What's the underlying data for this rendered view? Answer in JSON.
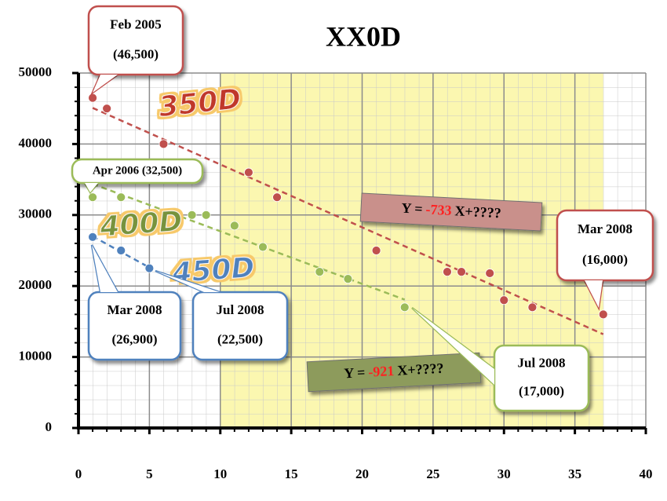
{
  "chart_data": {
    "type": "scatter",
    "title": "XX0D",
    "xlim": [
      0,
      40
    ],
    "xticks": [
      0,
      5,
      10,
      15,
      20,
      25,
      30,
      35,
      40
    ],
    "ylim": [
      0,
      50000
    ],
    "yticks": [
      0,
      10000,
      20000,
      30000,
      40000,
      50000
    ],
    "grid": true,
    "shaded_xrange": [
      10,
      37
    ],
    "trendline": true,
    "series": [
      {
        "name": "350D",
        "color": "#c0504d",
        "x": [
          1,
          2,
          6,
          12,
          14,
          21,
          26,
          27,
          29,
          30,
          32,
          37
        ],
        "values": [
          46500,
          45000,
          40000,
          36000,
          32500,
          25000,
          22000,
          22000,
          21800,
          18000,
          17000,
          16000
        ]
      },
      {
        "name": "400D",
        "color": "#9bbb59",
        "x": [
          1,
          3,
          8,
          9,
          11,
          13,
          17,
          19,
          23
        ],
        "values": [
          32500,
          32500,
          30000,
          30000,
          28500,
          25500,
          22000,
          21000,
          17000
        ]
      },
      {
        "name": "450D",
        "color": "#4f81bd",
        "x": [
          1,
          3,
          5
        ],
        "values": [
          26900,
          25000,
          22500
        ]
      }
    ],
    "annotations": [
      {
        "lines": [
          "Feb 2005",
          "(46,500)"
        ],
        "color": "#c0504d"
      },
      {
        "lines": [
          "Apr 2006 (32,500)"
        ],
        "color": "#9bbb59"
      },
      {
        "lines": [
          "Mar 2008",
          "(26,900)"
        ],
        "color": "#4f81bd"
      },
      {
        "lines": [
          "Jul 2008",
          "(22,500)"
        ],
        "color": "#4f81bd"
      },
      {
        "lines": [
          "Mar 2008",
          "(16,000)"
        ],
        "color": "#c0504d"
      },
      {
        "lines": [
          "Jul 2008",
          "(17,000)"
        ],
        "color": "#9bbb59"
      }
    ],
    "equations": [
      {
        "prefix": "Y =",
        "slope": "-733",
        "suffix": "X+????"
      },
      {
        "prefix": "Y =",
        "slope": "-921",
        "suffix": "X+????"
      }
    ]
  }
}
